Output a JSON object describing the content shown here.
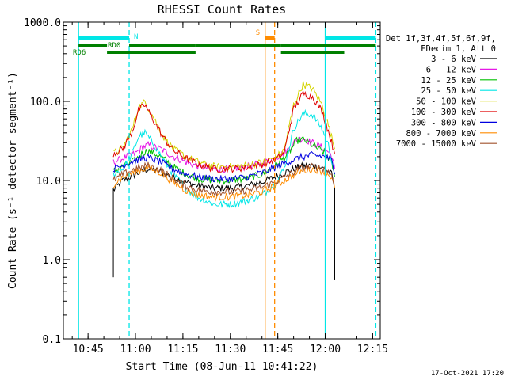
{
  "chart_data": {
    "type": "line",
    "title": "RHESSI Count Rates",
    "xlabel": "Start Time (08-Jun-11 10:41:22)",
    "ylabel": "Count Rate (s⁻¹ detector segment⁻¹)",
    "ylog": true,
    "ylim": [
      0.1,
      1000.0
    ],
    "xlim_minutes": [
      10.62,
      12.29
    ],
    "y_ticks": [
      "0.1",
      "1.0",
      "10.0",
      "100.0",
      "1000.0"
    ],
    "x_ticks": [
      "10:45",
      "11:00",
      "11:15",
      "11:30",
      "11:45",
      "12:00",
      "12:15"
    ],
    "legend_header": [
      "Det 1f,3f,4f,5f,6f,9f,",
      "FDecim 1, Att 0"
    ],
    "legend_position": "right",
    "series": [
      {
        "name": "3 - 6 keV",
        "color": "#000000",
        "x": [
          "10:53",
          "10:56",
          "11:00",
          "11:04",
          "11:08",
          "11:12",
          "11:16",
          "11:20",
          "11:25",
          "11:30",
          "11:35",
          "11:40",
          "11:44",
          "11:48",
          "11:52",
          "11:56",
          "12:00",
          "12:02",
          "12:03"
        ],
        "y": [
          7.5,
          10,
          12,
          14,
          13,
          11,
          9.5,
          8.5,
          8,
          8,
          8.5,
          9.5,
          11,
          13,
          15,
          15.5,
          14,
          12,
          8
        ]
      },
      {
        "name": "6 - 12 keV",
        "color": "#e619e6",
        "x": [
          "10:53",
          "10:56",
          "11:00",
          "11:02",
          "11:04",
          "11:08",
          "11:12",
          "11:16",
          "11:20",
          "11:25",
          "11:30",
          "11:35",
          "11:40",
          "11:44",
          "11:48",
          "11:51",
          "11:53",
          "11:56",
          "12:00",
          "12:02",
          "12:03"
        ],
        "y": [
          17,
          19,
          22,
          26,
          28,
          25,
          20,
          17,
          15,
          14,
          14,
          15,
          16.5,
          19,
          24,
          33,
          34,
          30,
          25,
          21,
          14
        ]
      },
      {
        "name": "12 - 25 keV",
        "color": "#00c000",
        "x": [
          "10:53",
          "10:56",
          "11:00",
          "11:02",
          "11:04",
          "11:08",
          "11:12",
          "11:16",
          "11:20",
          "11:25",
          "11:30",
          "11:35",
          "11:40",
          "11:44",
          "11:48",
          "11:51",
          "11:53",
          "11:56",
          "12:00",
          "12:02",
          "12:03"
        ],
        "y": [
          13,
          15,
          18,
          22,
          24,
          20,
          15,
          12,
          10.5,
          10,
          10,
          10.5,
          12,
          15,
          21,
          32,
          33,
          28,
          22,
          17,
          11
        ]
      },
      {
        "name": "25 - 50 keV",
        "color": "#00e6e6",
        "x": [
          "10:53",
          "10:56",
          "10:59",
          "11:01",
          "11:03",
          "11:06",
          "11:09",
          "11:12",
          "11:16",
          "11:20",
          "11:25",
          "11:30",
          "11:35",
          "11:40",
          "11:44",
          "11:47",
          "11:50",
          "11:53",
          "11:56",
          "11:59",
          "12:01",
          "12:03"
        ],
        "y": [
          12,
          14,
          22,
          36,
          40,
          28,
          18,
          12,
          8,
          6,
          5,
          5,
          5.5,
          6.5,
          9,
          14,
          45,
          70,
          68,
          45,
          28,
          12
        ]
      },
      {
        "name": "50 - 100 keV",
        "color": "#d4d400",
        "x": [
          "10:53",
          "10:56",
          "10:59",
          "11:01",
          "11:03",
          "11:06",
          "11:09",
          "11:12",
          "11:16",
          "11:20",
          "11:25",
          "11:30",
          "11:35",
          "11:40",
          "11:44",
          "11:47",
          "11:50",
          "11:53",
          "11:56",
          "11:59",
          "12:01",
          "12:03"
        ],
        "y": [
          22,
          26,
          45,
          85,
          98,
          60,
          35,
          25,
          20,
          17,
          15,
          15,
          15.5,
          17,
          19,
          24,
          90,
          165,
          145,
          90,
          50,
          25
        ]
      },
      {
        "name": "100 - 300 keV",
        "color": "#e00000",
        "x": [
          "10:53",
          "10:56",
          "10:59",
          "11:01",
          "11:03",
          "11:06",
          "11:09",
          "11:12",
          "11:16",
          "11:20",
          "11:25",
          "11:30",
          "11:35",
          "11:40",
          "11:44",
          "11:47",
          "11:50",
          "11:53",
          "11:56",
          "11:59",
          "12:01",
          "12:03"
        ],
        "y": [
          22,
          25,
          42,
          78,
          90,
          55,
          34,
          24,
          19,
          16,
          14,
          14,
          14.5,
          16,
          18,
          22,
          80,
          125,
          115,
          75,
          42,
          22
        ]
      },
      {
        "name": "300 - 800 keV",
        "color": "#0000e0",
        "x": [
          "10:53",
          "10:56",
          "11:00",
          "11:04",
          "11:08",
          "11:12",
          "11:16",
          "11:20",
          "11:25",
          "11:30",
          "11:35",
          "11:40",
          "11:44",
          "11:48",
          "11:52",
          "11:56",
          "12:00",
          "12:02",
          "12:03"
        ],
        "y": [
          14,
          15.5,
          18,
          19.5,
          17,
          14,
          12,
          11,
          10.5,
          10.5,
          11,
          12.5,
          14.5,
          17,
          19.5,
          21,
          20,
          18,
          12
        ]
      },
      {
        "name": "800 - 7000 keV",
        "color": "#ff8c00",
        "x": [
          "10:53",
          "10:56",
          "11:00",
          "11:04",
          "11:08",
          "11:12",
          "11:16",
          "11:20",
          "11:25",
          "11:30",
          "11:35",
          "11:40",
          "11:44",
          "11:48",
          "11:52",
          "11:56",
          "12:00",
          "12:02",
          "12:03"
        ],
        "y": [
          9,
          11,
          13,
          14.5,
          12.5,
          9.5,
          7.5,
          6.5,
          6.2,
          6.2,
          6.5,
          7.2,
          8.5,
          10.5,
          13,
          14,
          13,
          11,
          8
        ]
      },
      {
        "name": "7000 - 15000 keV",
        "color": "#a0522d",
        "x": [
          "10:53",
          "10:56",
          "11:00",
          "11:04",
          "11:08",
          "11:12",
          "11:16",
          "11:20",
          "11:25",
          "11:30",
          "11:35",
          "11:40",
          "11:44",
          "11:48",
          "11:52",
          "11:56",
          "12:00",
          "12:02",
          "12:03"
        ],
        "y": [
          10,
          12,
          14,
          15.5,
          13.5,
          10.5,
          8.5,
          7.5,
          7.2,
          7.2,
          7.5,
          8.2,
          9.5,
          11.5,
          14,
          15,
          14,
          12,
          9
        ]
      }
    ],
    "vertical_lines": [
      {
        "x": "10:42",
        "color": "#00e6e6",
        "dashed": false
      },
      {
        "x": "10:58",
        "color": "#00e6e6",
        "dashed": true
      },
      {
        "x": "12:00",
        "color": "#00e6e6",
        "dashed": false
      },
      {
        "x": "12:16",
        "color": "#00e6e6",
        "dashed": true
      },
      {
        "x": "11:41",
        "color": "#ff8c00",
        "dashed": false
      },
      {
        "x": "11:44",
        "color": "#ff8c00",
        "dashed": true
      }
    ],
    "flag_bars": [
      {
        "label": "N",
        "color": "#00e6e6",
        "segments": [
          [
            "10:42",
            "10:58"
          ],
          [
            "12:00",
            "12:16"
          ]
        ],
        "level": "top"
      },
      {
        "label": "RD0",
        "color": "#008000",
        "segments": [
          [
            "10:42",
            "10:51"
          ],
          [
            "10:58",
            "11:19"
          ],
          [
            "11:19",
            "11:46"
          ],
          [
            "11:46",
            "12:06"
          ],
          [
            "12:06",
            "12:16"
          ]
        ],
        "level": "middle"
      },
      {
        "label": "RD6",
        "color": "#008000",
        "segments": [
          [
            "10:51",
            "11:19"
          ],
          [
            "11:46",
            "12:06"
          ]
        ],
        "level": "lower"
      },
      {
        "label": "S",
        "color": "#ff8c00",
        "segments": [
          [
            "11:41",
            "11:44"
          ]
        ],
        "level": "top"
      }
    ],
    "timestamp": "17-Oct-2021 17:20"
  }
}
